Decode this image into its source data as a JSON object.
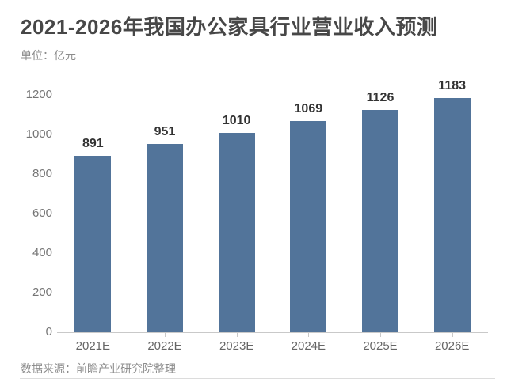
{
  "header": {
    "title": "2021-2026年我国办公家具行业营业收入预测",
    "unit_label": "单位：亿元"
  },
  "chart_data": {
    "type": "bar",
    "categories": [
      "2021E",
      "2022E",
      "2023E",
      "2024E",
      "2025E",
      "2026E"
    ],
    "values": [
      891,
      951,
      1010,
      1069,
      1126,
      1183
    ],
    "title": "2021-2026年我国办公家具行业营业收入预测",
    "xlabel": "",
    "ylabel": "单位：亿元",
    "ylim": [
      0,
      1200
    ],
    "y_ticks": [
      0,
      200,
      400,
      600,
      800,
      1000,
      1200
    ],
    "grid": false,
    "legend": "none",
    "data_labels": true,
    "bar_color": "#52749A",
    "axis_line_color": "#c9c9c9",
    "label_color": "#333333"
  },
  "footer": {
    "source": "数据来源：前瞻产业研究院整理"
  }
}
